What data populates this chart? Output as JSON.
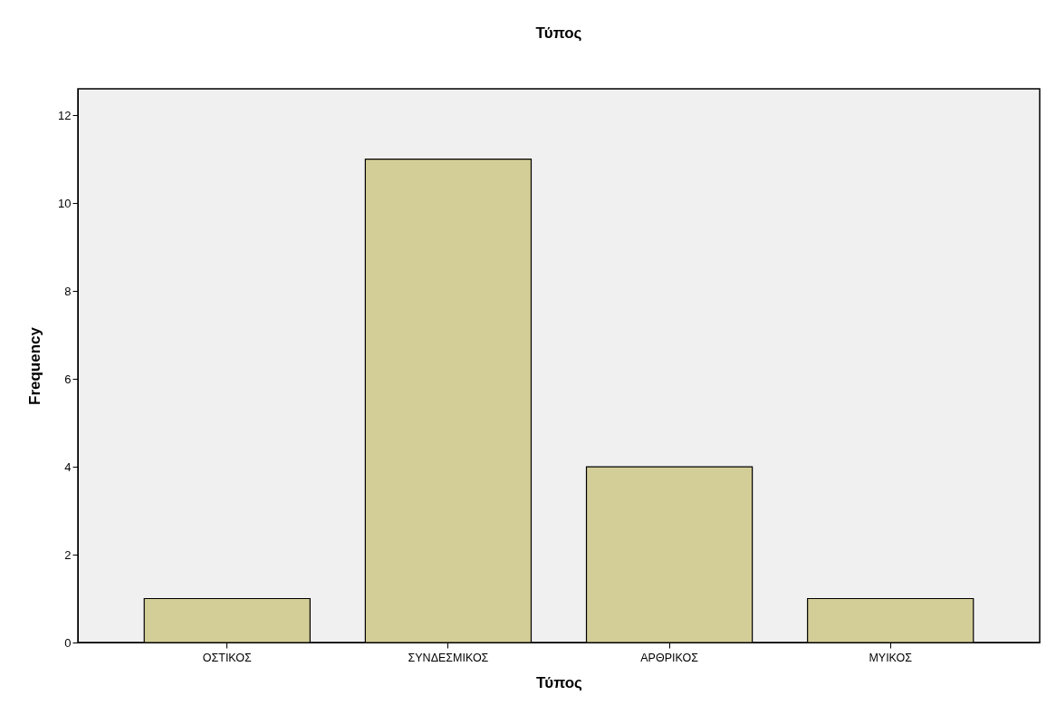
{
  "chart_data": {
    "type": "bar",
    "title": "Τύπος",
    "xlabel": "Τύπος",
    "ylabel": "Frequency",
    "categories": [
      "ΟΣΤΙΚΟΣ",
      "ΣΥΝΔΕΣΜΙΚΟΣ",
      "ΑΡΘΡΙΚΟΣ",
      "ΜΥΙΚΟΣ"
    ],
    "values": [
      1,
      11,
      4,
      1
    ],
    "color": "#d3ce97",
    "ylim": [
      0,
      12.6
    ],
    "yticks": [
      0,
      2,
      4,
      6,
      8,
      10,
      12
    ],
    "grid": false
  }
}
